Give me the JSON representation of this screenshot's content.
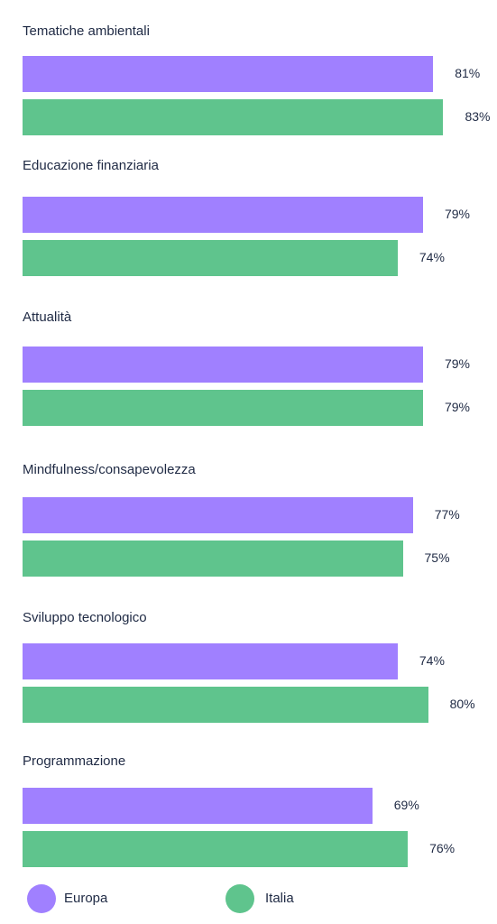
{
  "chart_data": {
    "type": "bar",
    "orientation": "horizontal",
    "categories": [
      "Tematiche ambientali",
      "Educazione finanziaria",
      "Attualità",
      "Mindfulness/consapevolezza",
      "Sviluppo tecnologico",
      "Programmazione"
    ],
    "series": [
      {
        "name": "Europa",
        "color": "#a080ff",
        "values": [
          81,
          79,
          79,
          77,
          74,
          69
        ],
        "labels": [
          "81%",
          "79%",
          "79%",
          "77%",
          "74%",
          "69%"
        ]
      },
      {
        "name": "Italia",
        "color": "#5fc48d",
        "values": [
          83,
          74,
          79,
          75,
          80,
          76
        ],
        "labels": [
          "83%",
          "74%",
          "79%",
          "75%",
          "80%",
          "76%"
        ]
      }
    ],
    "unit": "%",
    "legend": "bottom",
    "grid": false
  }
}
